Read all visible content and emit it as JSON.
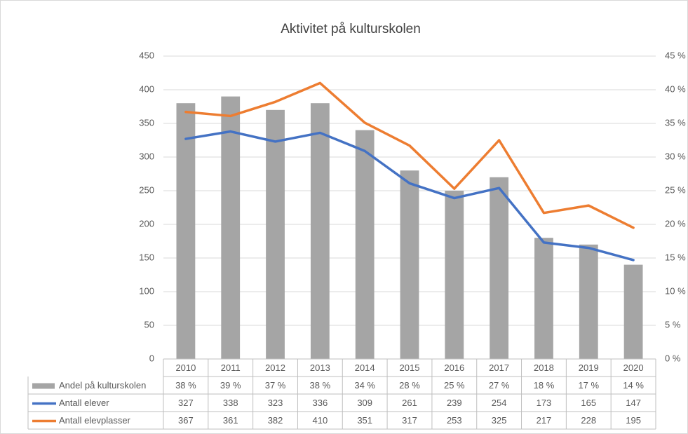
{
  "chart_data": {
    "type": "bar-line-table",
    "title": "Aktivitet på kulturskolen",
    "categories": [
      "2010",
      "2011",
      "2012",
      "2013",
      "2014",
      "2015",
      "2016",
      "2017",
      "2018",
      "2019",
      "2020"
    ],
    "ylim": [
      0,
      450
    ],
    "yticks": [
      0,
      50,
      100,
      150,
      200,
      250,
      300,
      350,
      400,
      450
    ],
    "y2lim": [
      0,
      45
    ],
    "y2ticks": [
      {
        "value": 0,
        "label": "0 %"
      },
      {
        "value": 5,
        "label": "5 %"
      },
      {
        "value": 10,
        "label": "10 %"
      },
      {
        "value": 15,
        "label": "15 %"
      },
      {
        "value": 20,
        "label": "20 %"
      },
      {
        "value": 25,
        "label": "25 %"
      },
      {
        "value": 30,
        "label": "30 %"
      },
      {
        "value": 35,
        "label": "35 %"
      },
      {
        "value": 40,
        "label": "40 %"
      },
      {
        "value": 45,
        "label": "45 %"
      }
    ],
    "grid": true,
    "series": [
      {
        "name": "Andel på kulturskolen",
        "type": "bar",
        "axis": "y2",
        "color": "#a5a5a5",
        "values": [
          38,
          39,
          37,
          38,
          34,
          28,
          25,
          27,
          18,
          17,
          14
        ],
        "value_labels": [
          "38 %",
          "39 %",
          "37 %",
          "38 %",
          "34 %",
          "28 %",
          "25 %",
          "27 %",
          "18 %",
          "17 %",
          "14 %"
        ]
      },
      {
        "name": "Antall elever",
        "type": "line",
        "axis": "y",
        "color": "#4472c4",
        "values": [
          327,
          338,
          323,
          336,
          309,
          261,
          239,
          254,
          173,
          165,
          147
        ]
      },
      {
        "name": "Antall elevplasser",
        "type": "line",
        "axis": "y",
        "color": "#ed7d31",
        "values": [
          367,
          361,
          382,
          410,
          351,
          317,
          253,
          325,
          217,
          228,
          195
        ]
      }
    ]
  }
}
